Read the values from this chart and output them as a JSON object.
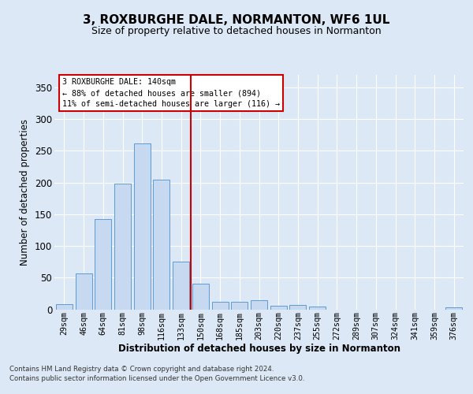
{
  "title": "3, ROXBURGHE DALE, NORMANTON, WF6 1UL",
  "subtitle": "Size of property relative to detached houses in Normanton",
  "xlabel": "Distribution of detached houses by size in Normanton",
  "ylabel": "Number of detached properties",
  "categories": [
    "29sqm",
    "46sqm",
    "64sqm",
    "81sqm",
    "98sqm",
    "116sqm",
    "133sqm",
    "150sqm",
    "168sqm",
    "185sqm",
    "203sqm",
    "220sqm",
    "237sqm",
    "255sqm",
    "272sqm",
    "289sqm",
    "307sqm",
    "324sqm",
    "341sqm",
    "359sqm",
    "376sqm"
  ],
  "values": [
    8,
    57,
    143,
    198,
    262,
    205,
    75,
    40,
    12,
    12,
    14,
    6,
    7,
    4,
    0,
    0,
    0,
    0,
    0,
    0,
    3
  ],
  "bar_color": "#c6d9f0",
  "bar_edge_color": "#5b9bd5",
  "annotation_line1": "3 ROXBURGHE DALE: 140sqm",
  "annotation_line2": "← 88% of detached houses are smaller (894)",
  "annotation_line3": "11% of semi-detached houses are larger (116) →",
  "red_line_color": "#cc0000",
  "annotation_box_edge": "#cc0000",
  "annotation_box_face": "#ffffff",
  "footer1": "Contains HM Land Registry data © Crown copyright and database right 2024.",
  "footer2": "Contains public sector information licensed under the Open Government Licence v3.0.",
  "bg_color": "#dce8f5",
  "plot_bg_color": "#dce8f5",
  "yticks": [
    0,
    50,
    100,
    150,
    200,
    250,
    300,
    350
  ],
  "ylim": [
    0,
    370
  ]
}
